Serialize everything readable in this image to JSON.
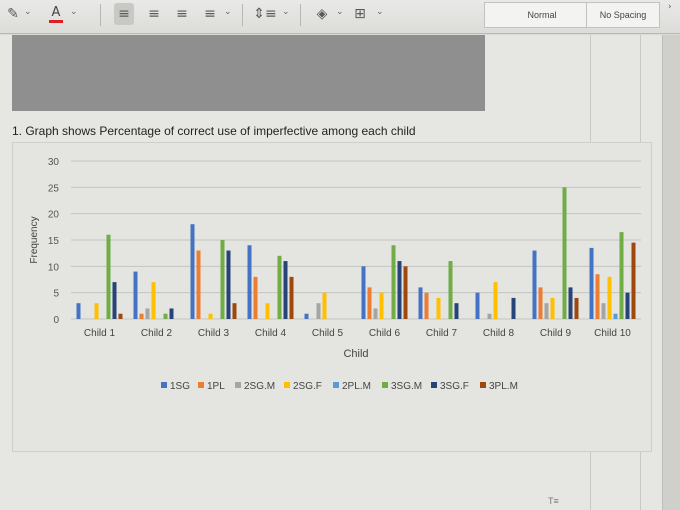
{
  "toolbar": {
    "icons": [
      "highlighter-icon",
      "font-color-icon",
      "align-left-icon",
      "align-center-icon",
      "align-right-icon",
      "justify-icon",
      "line-spacing-icon",
      "shading-icon",
      "borders-icon"
    ],
    "styles": [
      {
        "label": "Normal"
      },
      {
        "label": "No Spacing"
      }
    ]
  },
  "document": {
    "heading": "1. Graph shows Percentage of correct use of imperfective among each child"
  },
  "chart_data": {
    "type": "bar",
    "title": "",
    "xlabel": "Child",
    "ylabel": "Frequency",
    "ylim": [
      0,
      30
    ],
    "yticks": [
      0,
      5,
      10,
      15,
      20,
      25,
      30
    ],
    "grid": true,
    "legend": "bottom",
    "categories": [
      "Child 1",
      "Child 2",
      "Child 3",
      "Child 4",
      "Child 5",
      "Child 6",
      "Child 7",
      "Child 8",
      "Child 9",
      "Child 10"
    ],
    "series": [
      {
        "name": "1SG",
        "color": "#4472c4",
        "values": [
          3,
          9,
          18,
          14,
          1,
          10,
          6,
          5,
          13,
          13.5
        ]
      },
      {
        "name": "1PL",
        "color": "#ed7d31",
        "values": [
          0,
          1,
          13,
          8,
          0,
          6,
          5,
          0,
          6,
          8.5
        ]
      },
      {
        "name": "2SG.M",
        "color": "#a5a5a5",
        "values": [
          0,
          2,
          0,
          0,
          3,
          2,
          0,
          1,
          3,
          3
        ]
      },
      {
        "name": "2SG.F",
        "color": "#ffc000",
        "values": [
          3,
          7,
          1,
          3,
          5,
          5,
          4,
          7,
          4,
          8
        ]
      },
      {
        "name": "2PL.M",
        "color": "#5b9bd5",
        "values": [
          0,
          0,
          0,
          0,
          0,
          0,
          0,
          0,
          0,
          1
        ]
      },
      {
        "name": "3SG.M",
        "color": "#70ad47",
        "values": [
          16,
          1,
          15,
          12,
          0,
          14,
          11,
          0,
          25,
          16.5
        ]
      },
      {
        "name": "3SG.F",
        "color": "#264478",
        "values": [
          7,
          2,
          13,
          11,
          0,
          11,
          3,
          4,
          6,
          5
        ]
      },
      {
        "name": "3PL.M",
        "color": "#9e480e",
        "values": [
          1,
          0,
          3,
          8,
          0,
          10,
          0,
          0,
          4,
          14.5
        ]
      }
    ]
  }
}
